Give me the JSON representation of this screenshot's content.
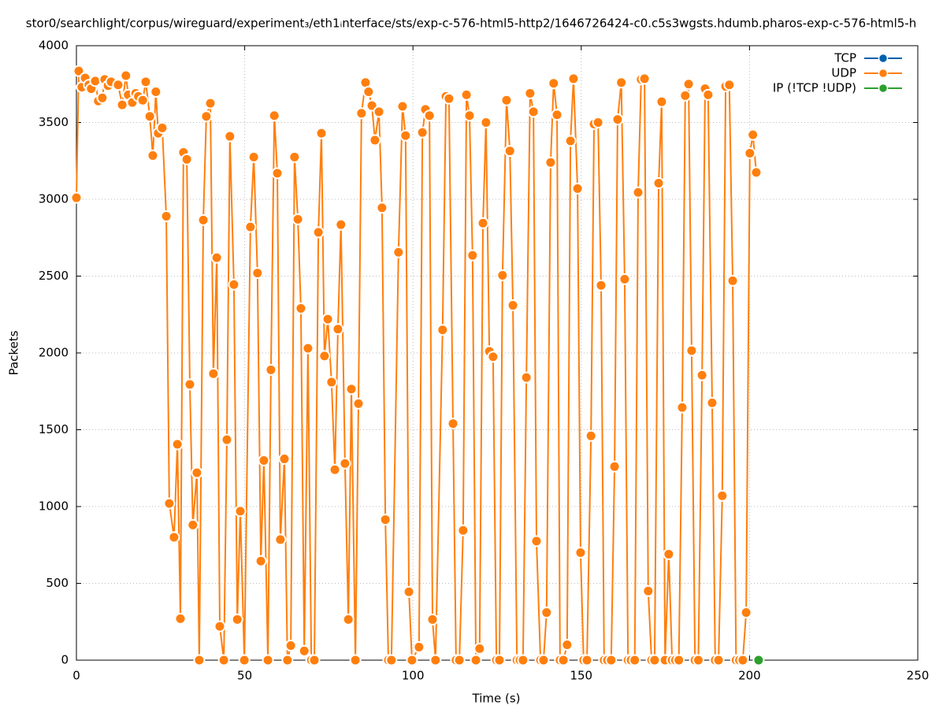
{
  "chart_data": {
    "type": "line",
    "title": "stor0/searchlight/corpus/wireguard/experiment₃/eth1ᵢnterface/sts/exp-c-576-html5-http2/1646726424-c0.c5s3wgsts.hdumb.pharos-exp-c-576-html5-h",
    "x_label": "Time (s)",
    "y_label": "Packets",
    "xlim": [
      0,
      250
    ],
    "xticks": [
      0,
      50,
      100,
      150,
      200,
      250
    ],
    "ylim": [
      0,
      4000
    ],
    "yticks": [
      0,
      500,
      1000,
      1500,
      2000,
      2500,
      3000,
      3500,
      4000
    ],
    "grid": true,
    "legend": "top-right",
    "series": [
      {
        "name": "TCP",
        "color": "#0060ad",
        "x": [],
        "values": []
      },
      {
        "name": "UDP",
        "color": "#ff7f0e",
        "x": [
          0,
          0.7,
          1.6,
          2.6,
          3.7,
          4.4,
          5.6,
          6.5,
          7.7,
          8.4,
          9.4,
          10.3,
          12.4,
          13.6,
          14.7,
          15.4,
          16.6,
          17.6,
          18.4,
          19.7,
          20.6,
          21.8,
          22.7,
          23.6,
          24.3,
          25.5,
          26.7,
          27.6,
          29,
          30,
          30.9,
          31.8,
          32.8,
          33.7,
          34.6,
          35.8,
          36.5,
          37.7,
          38.6,
          39.8,
          40.7,
          41.7,
          42.6,
          43.8,
          44.7,
          45.6,
          46.8,
          47.8,
          48.7,
          49.9,
          51.7,
          52.7,
          53.8,
          54.8,
          55.7,
          56.9,
          57.8,
          58.8,
          59.7,
          60.6,
          61.8,
          62.7,
          63.7,
          64.8,
          65.8,
          66.7,
          67.7,
          68.8,
          69.8,
          70.7,
          71.9,
          72.8,
          73.7,
          74.7,
          75.8,
          76.8,
          77.7,
          78.6,
          79.8,
          80.8,
          81.7,
          82.9,
          83.8,
          84.7,
          85.9,
          86.8,
          87.8,
          88.7,
          89.9,
          90.8,
          91.8,
          92.7,
          93.6,
          95.7,
          96.9,
          97.8,
          98.8,
          99.7,
          101.8,
          102.8,
          103.7,
          104.9,
          105.8,
          106.7,
          108.8,
          109.8,
          110.7,
          111.9,
          112.8,
          113.8,
          114.9,
          115.9,
          116.8,
          117.7,
          118.7,
          119.8,
          120.8,
          121.7,
          122.7,
          123.8,
          124.8,
          125.7,
          126.6,
          127.8,
          128.8,
          129.7,
          130.9,
          131.8,
          132.7,
          133.7,
          134.8,
          135.8,
          136.7,
          137.9,
          138.8,
          139.7,
          140.9,
          141.8,
          142.8,
          143.7,
          144.7,
          145.8,
          146.8,
          147.7,
          148.9,
          149.8,
          150.7,
          151.7,
          152.9,
          153.8,
          155,
          155.9,
          156.8,
          157.8,
          158.9,
          159.9,
          160.8,
          161.9,
          162.9,
          163.9,
          164.8,
          165.9,
          166.9,
          167.8,
          168.8,
          169.9,
          170.9,
          171.8,
          173,
          173.9,
          174.9,
          176,
          177,
          178,
          179,
          180,
          180.9,
          181.9,
          182.8,
          183.8,
          184.8,
          185.9,
          186.8,
          187.7,
          188.9,
          189.8,
          190.8,
          191.9,
          192.9,
          194,
          195,
          196,
          197,
          198,
          199,
          200.1,
          201,
          202
        ],
        "values": [
          3010,
          3835,
          3730,
          3790,
          3745,
          3720,
          3770,
          3640,
          3660,
          3780,
          3740,
          3765,
          3745,
          3615,
          3805,
          3680,
          3630,
          3690,
          3670,
          3645,
          3765,
          3540,
          3285,
          3700,
          3430,
          3465,
          2890,
          1020,
          800,
          1405,
          270,
          3305,
          3260,
          1795,
          880,
          1220,
          0,
          2865,
          3540,
          3625,
          1865,
          2620,
          220,
          0,
          1435,
          3410,
          2445,
          265,
          970,
          0,
          2820,
          3275,
          2520,
          645,
          1300,
          0,
          1890,
          3545,
          3170,
          785,
          1310,
          0,
          95,
          3275,
          2870,
          2290,
          60,
          2030,
          0,
          0,
          2785,
          3430,
          1980,
          2220,
          1810,
          1240,
          2155,
          2835,
          1280,
          265,
          1765,
          0,
          1670,
          3560,
          3760,
          3700,
          3610,
          3385,
          3570,
          2945,
          915,
          0,
          0,
          2655,
          3605,
          3415,
          445,
          0,
          85,
          3435,
          3585,
          3545,
          265,
          0,
          2150,
          3670,
          3655,
          1540,
          0,
          0,
          845,
          3680,
          3545,
          2635,
          0,
          75,
          2845,
          3500,
          2010,
          1975,
          0,
          0,
          2505,
          3645,
          3315,
          2310,
          0,
          0,
          0,
          1840,
          3690,
          3570,
          775,
          0,
          0,
          310,
          3240,
          3755,
          3550,
          0,
          0,
          100,
          3380,
          3785,
          3070,
          700,
          0,
          0,
          1460,
          3490,
          3500,
          2440,
          0,
          0,
          0,
          1260,
          3520,
          3760,
          2480,
          0,
          0,
          0,
          3045,
          3780,
          3785,
          450,
          0,
          0,
          3105,
          3635,
          0,
          690,
          0,
          0,
          0,
          1645,
          3675,
          3750,
          2015,
          0,
          0,
          1855,
          3720,
          3680,
          1675,
          0,
          0,
          1070,
          3735,
          3745,
          2470,
          0,
          0,
          0,
          310,
          3300,
          3420,
          3175
        ]
      },
      {
        "name": "IP (!TCP  !UDP)",
        "color": "#2ca02c",
        "x": [
          202.7
        ],
        "values": [
          0
        ]
      }
    ]
  }
}
